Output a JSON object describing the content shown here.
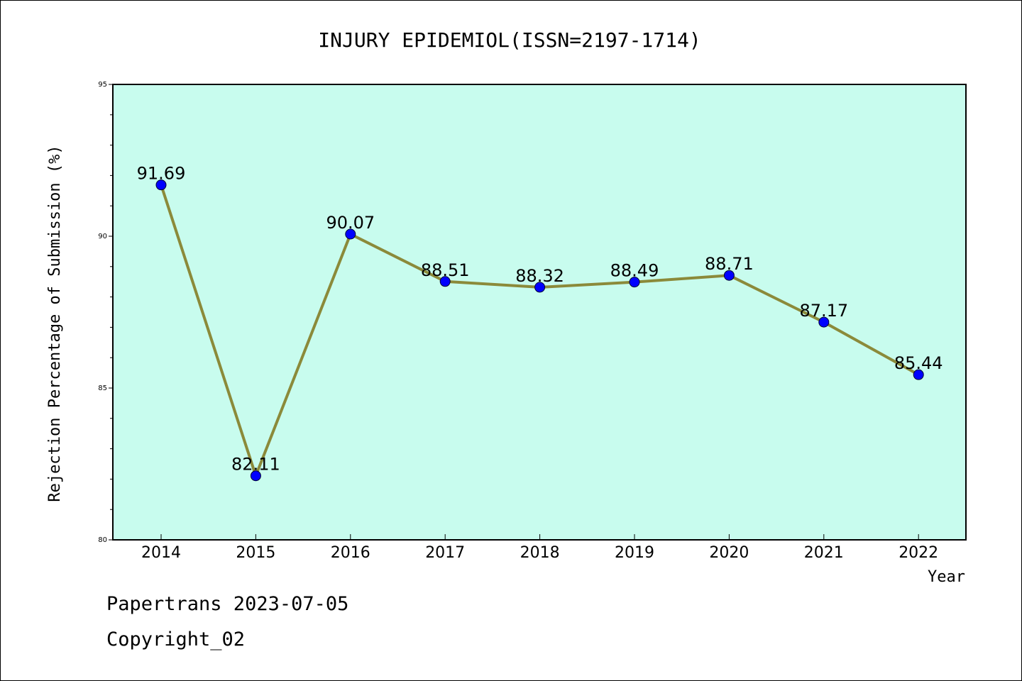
{
  "chart_data": {
    "type": "line",
    "title": "INJURY EPIDEMIOL(ISSN=2197-1714)",
    "xlabel": "Year",
    "ylabel": "Rejection Percentage of Submission (%)",
    "categories": [
      "2014",
      "2015",
      "2016",
      "2017",
      "2018",
      "2019",
      "2020",
      "2021",
      "2022"
    ],
    "values": [
      91.69,
      82.11,
      90.07,
      88.51,
      88.32,
      88.49,
      88.71,
      87.17,
      85.44
    ],
    "data_labels": [
      "91.69",
      "82.11",
      "90.07",
      "88.51",
      "88.32",
      "88.49",
      "88.71",
      "87.17",
      "85.44"
    ],
    "ylim": [
      80,
      95
    ],
    "yticks": [
      "80",
      "85",
      "90",
      "95"
    ],
    "grid": false,
    "colors": {
      "plot_background": "#c8fcee",
      "line": "#8b8a3a",
      "marker": "#0000ff"
    }
  },
  "footer": {
    "line1": "Papertrans 2023-07-05",
    "line2": "Copyright_02"
  }
}
